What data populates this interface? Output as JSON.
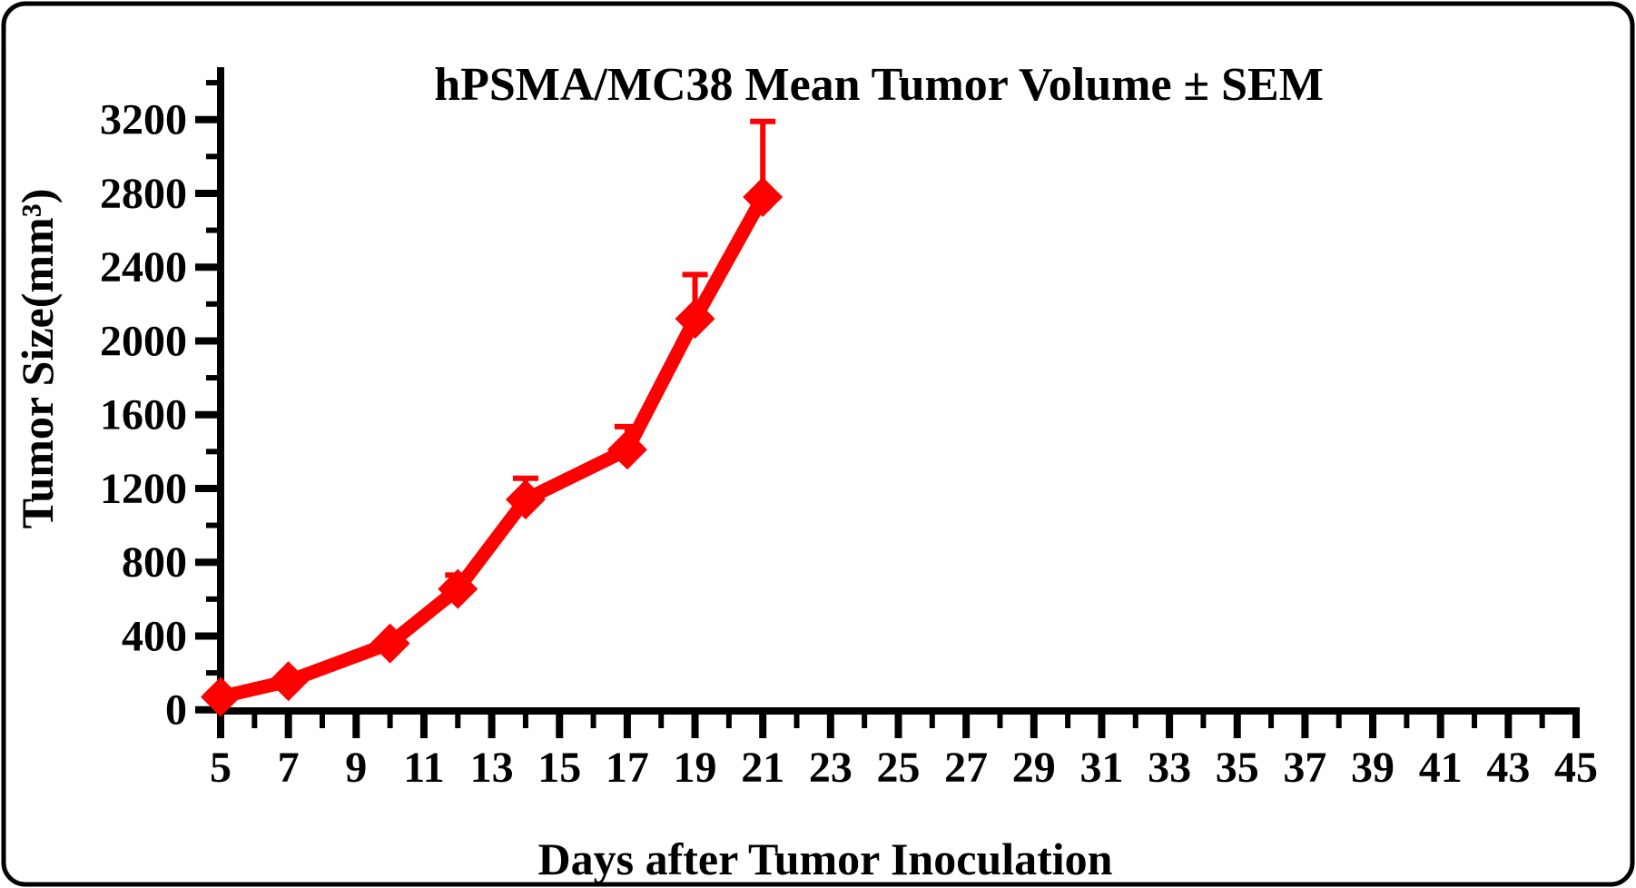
{
  "frame": {
    "border_color": "#000000",
    "background": "#ffffff"
  },
  "chart_data": {
    "type": "line",
    "title": "hPSMA/MC38 Mean Tumor Volume ± SEM",
    "xlabel": "Days after Tumor Inoculation",
    "ylabel": "Tumor Size(mm³)",
    "axis_color": "#000000",
    "xlim": [
      5,
      45
    ],
    "ylim": [
      0,
      3480
    ],
    "x_ticks_labeled": [
      5,
      7,
      9,
      11,
      13,
      15,
      17,
      19,
      21,
      23,
      25,
      27,
      29,
      31,
      33,
      35,
      37,
      39,
      41,
      43,
      45
    ],
    "x_minor_step": 1,
    "y_ticks_labeled": [
      0,
      400,
      800,
      1200,
      1600,
      2000,
      2400,
      2800,
      3200
    ],
    "y_minor_ticks": [
      200,
      600,
      1000,
      1400,
      1800,
      2200,
      2600,
      3000,
      3400
    ],
    "grid": false,
    "legend": "none",
    "error_bars": "SEM, upper whisker only",
    "series": [
      {
        "name": "hPSMA/MC38 Mean Tumor Volume",
        "color": "#ff0000",
        "marker": "diamond",
        "x": [
          5,
          7,
          10,
          12,
          14,
          17,
          19,
          21
        ],
        "values": [
          70,
          155,
          360,
          655,
          1140,
          1410,
          2120,
          2780
        ],
        "sem_upper": [
          0,
          0,
          0,
          75,
          115,
          125,
          240,
          410
        ]
      }
    ]
  }
}
